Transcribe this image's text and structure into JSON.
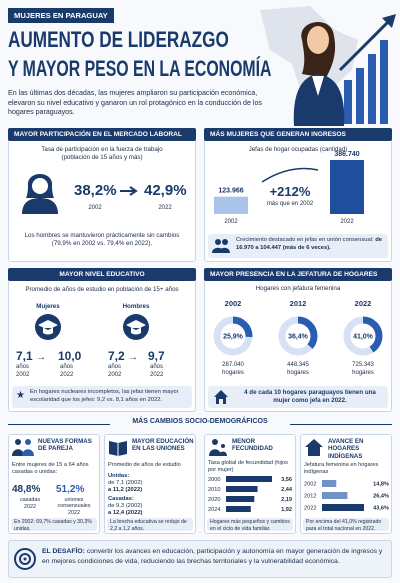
{
  "header": {
    "tag": "MUJERES EN PARAGUAY",
    "title_line1": "AUMENTO DE LIDERAZGO",
    "title_line2": "Y MAYOR PESO EN LA ECONOMÍA",
    "intro": "En las últimas dos décadas, las mujeres ampliaron su participación económica, elevaron su nivel educativo y ganaron un rol protagónico en la conducción de los hogares paraguayos."
  },
  "labor": {
    "title": "MAYOR PARTICIPACIÓN EN EL MERCADO LABORAL",
    "subtitle": "Tasa de participación en la fuerza de trabajo (población de 15 años y más)",
    "items": [
      {
        "value": "38,2%",
        "year": "2002"
      },
      {
        "value": "42,9%",
        "year": "2022"
      }
    ],
    "note": "Los hombres se mantuvieron prácticamente sin cambios (79,9% en 2002 vs. 79,4% en 2022)."
  },
  "income": {
    "title": "MÁS MUJERES QUE GENERAN INGRESOS",
    "subtitle": "Jefas de hogar ocupadas (cantidad)",
    "years": [
      "2002",
      "2022"
    ],
    "values": [
      123966,
      386740
    ],
    "value_labels": [
      "123.966",
      "386.740"
    ],
    "colors": [
      "#a9c4e8",
      "#1f4e9c"
    ],
    "growth": "+212%",
    "growth_label": "más que en 2002",
    "note_text": "Crecimiento destacado en jefas en unión consensual:",
    "note_bold": "de 16.970 a 104.447 (más de 6 veces)."
  },
  "education": {
    "title": "MAYOR NIVEL EDUCATIVO",
    "subtitle": "Promedio de años de estudio en población de 15+ años",
    "groups": [
      {
        "name": "Mujeres",
        "from": "7,1",
        "from_unit": "años",
        "from_year": "2002",
        "to": "10,0",
        "to_unit": "años",
        "to_year": "2022"
      },
      {
        "name": "Hombres",
        "from": "7,2",
        "from_unit": "años",
        "from_year": "2002",
        "to": "9,7",
        "to_unit": "años",
        "to_year": "2022"
      }
    ],
    "note": "En hogares nucleares incompletos, las jefas tienen mayor escolaridad que los jefes: 9,2 vs. 8,1 años en 2022."
  },
  "households": {
    "title": "MAYOR PRESENCIA EN LA JEFATURA DE HOGARES",
    "subtitle": "Hogares con jefatura femenina",
    "years": [
      "2002",
      "2012",
      "2022"
    ],
    "values": [
      25.9,
      36.4,
      41.0
    ],
    "value_labels": [
      "25,9%",
      "36,4%",
      "41,0%"
    ],
    "counts": [
      "287.040",
      "448.345",
      "725.343"
    ],
    "units": [
      "hogares",
      "hogares",
      "hogares"
    ],
    "note": "4 de cada 10 hogares paraguayos tienen una mujer como jefa en 2022."
  },
  "socio": {
    "title": "MÁS CAMBIOS SOCIO-DEMOGRÁFICOS",
    "couples": {
      "title": "NUEVAS FORMAS DE PAREJA",
      "subtitle": "Entre mujeres de 15 a 64 años casadas o unidas:",
      "items": [
        {
          "value": "48,8%",
          "label": "casadas",
          "year": "2022"
        },
        {
          "value": "51,2%",
          "label": "uniones consensuales",
          "year": "2022"
        }
      ],
      "note": "En 2002: 69,7% casadas y 30,3% unidas."
    },
    "unions": {
      "title": "MAYOR EDUCACIÓN EN LAS UNIONES",
      "subtitle": "Promedio de años de estudio",
      "groups": [
        {
          "name": "Unidas:",
          "from": "de 7,1 (2002)",
          "to": "a 11,2 (2022)"
        },
        {
          "name": "Casadas:",
          "from": "de 9,3 (2002)",
          "to": "a 12,4 (2022)"
        }
      ],
      "note": "La brecha educativa se redujo de 2,2 a 1,2 años."
    },
    "fertility": {
      "title": "MENOR FECUNDIDAD",
      "subtitle": "Tasa global de fecundidad (hijos por mujer)",
      "years": [
        "2000",
        "2010",
        "2020",
        "2024"
      ],
      "values": [
        3.56,
        2.44,
        2.19,
        1.92
      ],
      "value_labels": [
        "3,56",
        "2,44",
        "2,19",
        "1,92"
      ],
      "color": "#1a3a6b",
      "note": "Hogares más pequeños y cambios en el ciclo de vida familiar."
    },
    "indigenous": {
      "title": "AVANCE EN HOGARES INDÍGENAS",
      "subtitle": "Jefatura femenina en hogares indígenas",
      "years": [
        "2002",
        "2012",
        "2022"
      ],
      "values": [
        14.8,
        26.4,
        43.6
      ],
      "value_labels": [
        "14,8%",
        "26,4%",
        "43,6%"
      ],
      "colors": [
        "#6f93c9",
        "#6f93c9",
        "#1a3a6b"
      ],
      "note": "Por encima del 41,0% registrado para el total nacional en 2022."
    }
  },
  "footer": {
    "label": "EL DESAFÍO:",
    "text": "convertir los avances en educación, participación y autonomía en mayor generación de ingresos y en mejores condiciones de vida, reduciendo las brechas territoriales y la vulnerabilidad económica."
  }
}
